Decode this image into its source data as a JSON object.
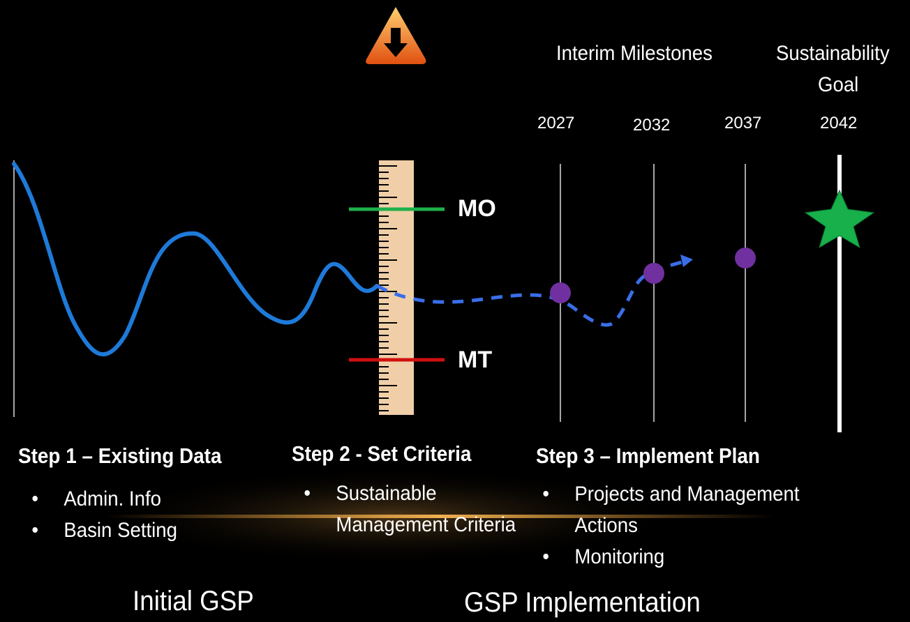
{
  "header": {
    "milestones_label": "Interim Milestones",
    "goal_label": [
      "Sustainability",
      "Goal"
    ],
    "years": [
      2027,
      2032,
      2037,
      2042
    ]
  },
  "criteria": {
    "objective": "MO",
    "threshold": "MT"
  },
  "steps": [
    {
      "title": "Step 1 – Existing Data",
      "bullets": [
        "Admin. Info",
        "Basin Setting"
      ]
    },
    {
      "title": "Step 2 - Set Criteria",
      "bullets": [
        "Sustainable Management Criteria"
      ]
    },
    {
      "title": "Step 3 – Implement Plan",
      "bullets": [
        "Projects and  Management Actions",
        "Monitoring"
      ]
    }
  ],
  "footer": {
    "left": "Initial GSP",
    "right": "GSP Implementation"
  }
}
